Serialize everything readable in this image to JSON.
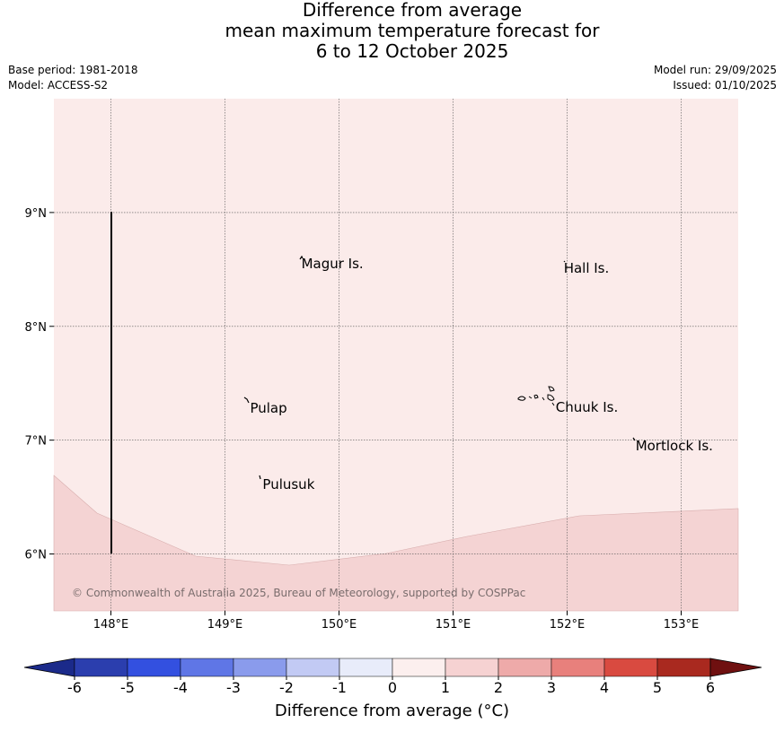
{
  "title": {
    "line1": "Difference from average",
    "line2": "mean maximum temperature forecast for",
    "line3": "6 to 12 October 2025"
  },
  "meta": {
    "base_period": "Base period: 1981-2018",
    "model": "Model: ACCESS-S2",
    "model_run": "Model run: 29/09/2025",
    "issued": "Issued: 01/10/2025"
  },
  "map": {
    "extent": {
      "lon": [
        147.5,
        153.5
      ],
      "lat": [
        5.5,
        10.0
      ]
    },
    "background_color": "#fbebea",
    "lower_band_color": "#f4d3d3",
    "lat_ticks": [
      {
        "value": 9,
        "label": "9°N"
      },
      {
        "value": 8,
        "label": "8°N"
      },
      {
        "value": 7,
        "label": "7°N"
      },
      {
        "value": 6,
        "label": "6°N"
      }
    ],
    "lon_ticks": [
      {
        "value": 148,
        "label": "148°E"
      },
      {
        "value": 149,
        "label": "149°E"
      },
      {
        "value": 150,
        "label": "150°E"
      },
      {
        "value": 151,
        "label": "151°E"
      },
      {
        "value": 152,
        "label": "152°E"
      },
      {
        "value": 153,
        "label": "153°E"
      }
    ],
    "places": [
      {
        "name": "Magur Is.",
        "lon": 149.67,
        "lat": 8.55
      },
      {
        "name": "Hall Is.",
        "lon": 151.97,
        "lat": 8.51
      },
      {
        "name": "Pulap",
        "lon": 149.22,
        "lat": 7.28
      },
      {
        "name": "Chuuk Is.",
        "lon": 151.9,
        "lat": 7.29
      },
      {
        "name": "Mortlock Is.",
        "lon": 152.6,
        "lat": 6.95
      },
      {
        "name": "Pulusuk",
        "lon": 149.33,
        "lat": 6.61
      }
    ],
    "copyright": "© Commonwealth of Australia 2025, Bureau of Meteorology, supported by COSPPac"
  },
  "colorbar": {
    "label": "Difference from average (°C)",
    "ticks": [
      "-6",
      "-5",
      "-4",
      "-3",
      "-2",
      "-1",
      "0",
      "1",
      "2",
      "3",
      "4",
      "5",
      "6"
    ],
    "colors": [
      "#1b2a8a",
      "#2b3eae",
      "#3350e0",
      "#5f76e6",
      "#8a9bec",
      "#c2caf4",
      "#e8ecfa",
      "#fcefee",
      "#f6d2d2",
      "#eeaaa9",
      "#e8807c",
      "#d94a40",
      "#a9291f",
      "#6f1010"
    ]
  }
}
